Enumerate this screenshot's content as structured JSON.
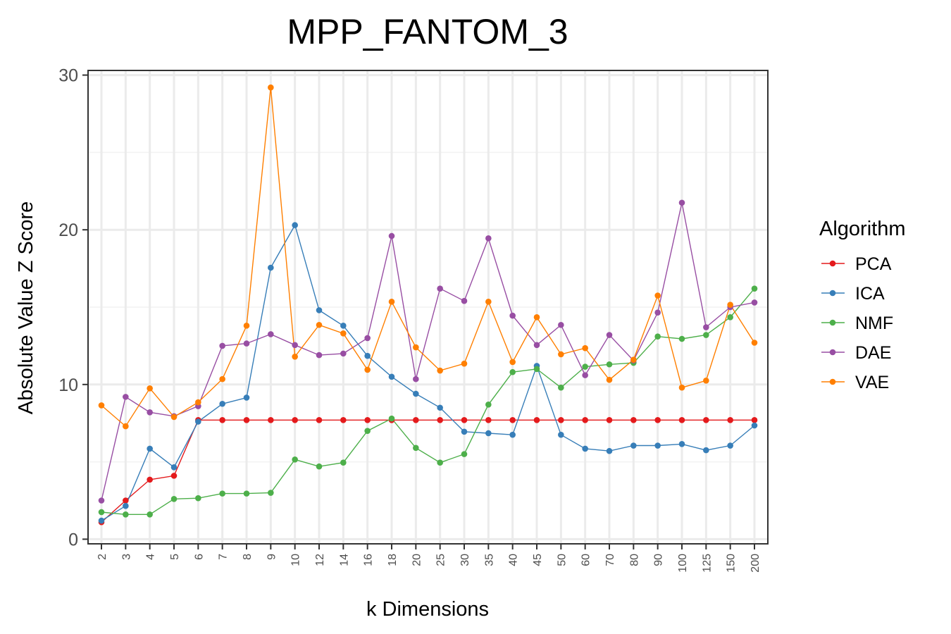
{
  "chart_data": {
    "type": "line",
    "title": "MPP_FANTOM_3",
    "xlabel": "k Dimensions",
    "ylabel": "Absolute Value Z Score",
    "categories": [
      "2",
      "3",
      "4",
      "5",
      "6",
      "7",
      "8",
      "9",
      "10",
      "12",
      "14",
      "16",
      "18",
      "20",
      "25",
      "30",
      "35",
      "40",
      "45",
      "50",
      "60",
      "70",
      "80",
      "90",
      "100",
      "125",
      "150",
      "200"
    ],
    "yticks": [
      0,
      10,
      20,
      30
    ],
    "ylim": [
      -0.3,
      30.3
    ],
    "grid": true,
    "legend": {
      "title": "Algorithm",
      "position": "right"
    },
    "series": [
      {
        "name": "PCA",
        "color": "#E41A1C",
        "values": [
          1.1,
          2.5,
          3.85,
          4.1,
          7.7,
          7.7,
          7.7,
          7.7,
          7.7,
          7.7,
          7.7,
          7.7,
          7.7,
          7.7,
          7.7,
          7.7,
          7.7,
          7.7,
          7.7,
          7.7,
          7.7,
          7.7,
          7.7,
          7.7,
          7.7,
          7.7,
          7.7,
          7.7
        ]
      },
      {
        "name": "ICA",
        "color": "#377EB8",
        "values": [
          1.2,
          2.15,
          5.85,
          4.65,
          7.6,
          8.75,
          9.15,
          17.55,
          20.3,
          14.8,
          13.8,
          11.85,
          10.5,
          9.4,
          8.5,
          6.95,
          6.85,
          6.75,
          11.2,
          6.75,
          5.85,
          5.7,
          6.05,
          6.05,
          6.15,
          5.75,
          6.05,
          7.35
        ]
      },
      {
        "name": "NMF",
        "color": "#4DAF4A",
        "values": [
          1.75,
          1.6,
          1.6,
          2.6,
          2.65,
          2.95,
          2.95,
          3.0,
          5.15,
          4.7,
          4.95,
          7.0,
          7.8,
          5.9,
          4.95,
          5.5,
          8.7,
          10.8,
          11.0,
          9.8,
          11.15,
          11.3,
          11.4,
          13.1,
          12.95,
          13.2,
          14.35,
          16.2
        ]
      },
      {
        "name": "DAE",
        "color": "#984EA3",
        "values": [
          2.5,
          9.2,
          8.2,
          7.95,
          8.6,
          12.5,
          12.65,
          13.25,
          12.55,
          11.9,
          12.0,
          13.0,
          19.6,
          10.35,
          16.2,
          15.4,
          19.45,
          14.45,
          12.55,
          13.85,
          10.6,
          13.2,
          11.55,
          14.65,
          21.75,
          13.7,
          15.0,
          15.3
        ]
      },
      {
        "name": "VAE",
        "color": "#FF7F00",
        "values": [
          8.65,
          7.3,
          9.75,
          7.9,
          8.85,
          10.35,
          13.8,
          29.2,
          11.8,
          13.85,
          13.3,
          10.95,
          15.35,
          12.4,
          10.9,
          11.35,
          15.35,
          11.45,
          14.35,
          11.95,
          12.35,
          10.3,
          11.6,
          15.75,
          9.8,
          10.25,
          15.15,
          12.7
        ]
      }
    ]
  }
}
